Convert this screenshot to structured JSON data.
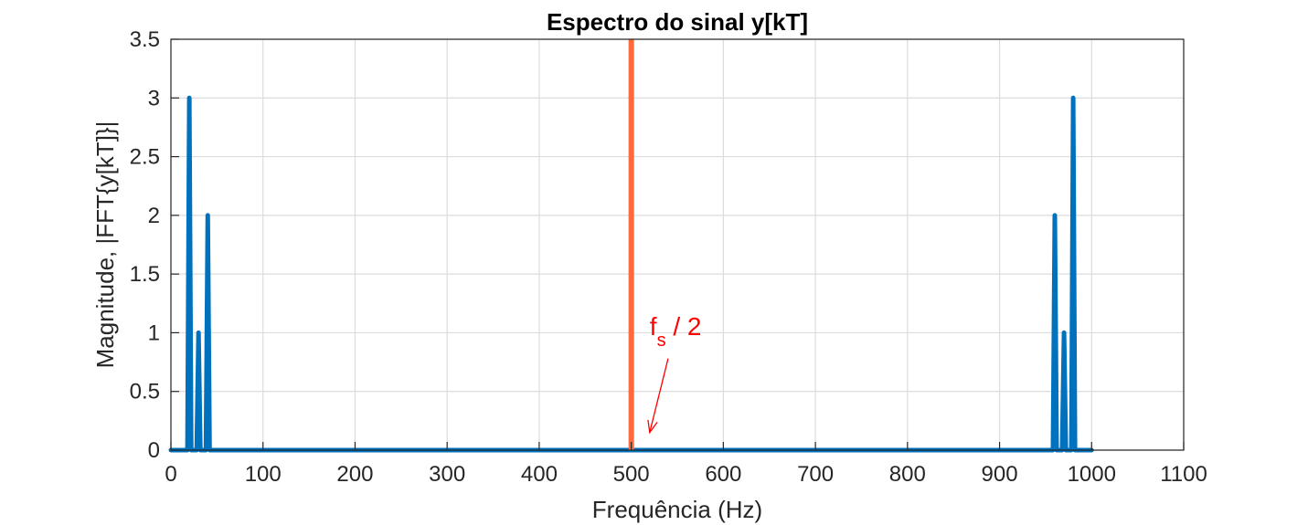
{
  "chart_data": {
    "type": "line",
    "title": "Espectro do sinal y[kT]",
    "xlabel": "Frequência (Hz)",
    "ylabel": "Magnitude, |FFT{y[kT]}|",
    "xlim": [
      0,
      1100
    ],
    "ylim": [
      0,
      3.5
    ],
    "xticks": [
      "0",
      "100",
      "200",
      "300",
      "400",
      "500",
      "600",
      "700",
      "800",
      "900",
      "1000",
      "1100"
    ],
    "yticks": [
      "0",
      "0.5",
      "1",
      "1.5",
      "2",
      "2.5",
      "3",
      "3.5"
    ],
    "grid": true,
    "series": [
      {
        "color": "#0072BD",
        "x": [
          0,
          18,
          20,
          22,
          28,
          30,
          32,
          38,
          40,
          42,
          958,
          960,
          962,
          968,
          970,
          972,
          978,
          980,
          982,
          1000
        ],
        "y": [
          0,
          0,
          3,
          0,
          0,
          1,
          0,
          0,
          2,
          0,
          0,
          2,
          0,
          0,
          1,
          0,
          0,
          3,
          0,
          0
        ]
      }
    ],
    "vline": {
      "x": 500,
      "color": "#FF6A3D"
    },
    "annotation": {
      "text_main": "f",
      "text_sub": "s",
      "text_rest": " / 2",
      "color": "#FF0000",
      "arrow_to": [
        520,
        0.15
      ],
      "arrow_from": [
        540,
        0.78
      ],
      "text_at": [
        520,
        0.98
      ]
    }
  }
}
